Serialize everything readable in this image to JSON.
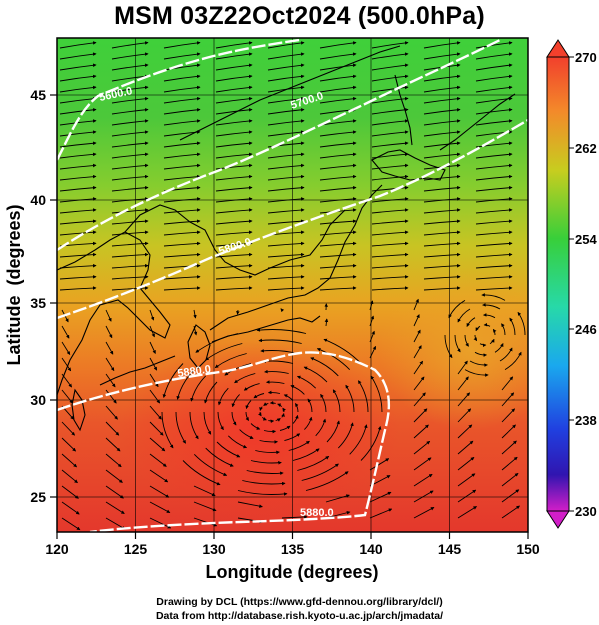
{
  "title": "MSM 03Z22Oct2024 (500.0hPa)",
  "axes": {
    "xlabel": "Longitude (degrees)",
    "ylabel": "Latitude  (degrees)",
    "xlim": [
      120,
      150
    ],
    "ylim": [
      22.5,
      47.9
    ],
    "xticks": [
      "120",
      "125",
      "130",
      "135",
      "140",
      "145",
      "150"
    ],
    "yticks": [
      "25",
      "30",
      "35",
      "40",
      "45"
    ]
  },
  "colorbar": {
    "ticks": [
      "270",
      "262",
      "254",
      "246",
      "238",
      "230"
    ],
    "min": 230,
    "max": 270
  },
  "contours": [
    {
      "label": "5600.0"
    },
    {
      "label": "5700.0"
    },
    {
      "label": "5800.0"
    },
    {
      "label": "5880.0"
    },
    {
      "label": "5880.0"
    }
  ],
  "credits": {
    "line1": "Drawing by DCL (https://www.gfd-dennou.org/library/dcl/)",
    "line2": "Data from http://database.rish.kyoto-u.ac.jp/arch/jmadata/"
  },
  "colors": {
    "warm": "#e83a2a",
    "orange": "#ee8a22",
    "green": "#36c43c",
    "contour": "#ffffff"
  },
  "icons": [
    "colorbar-up-arrow-icon",
    "colorbar-down-arrow-icon"
  ]
}
